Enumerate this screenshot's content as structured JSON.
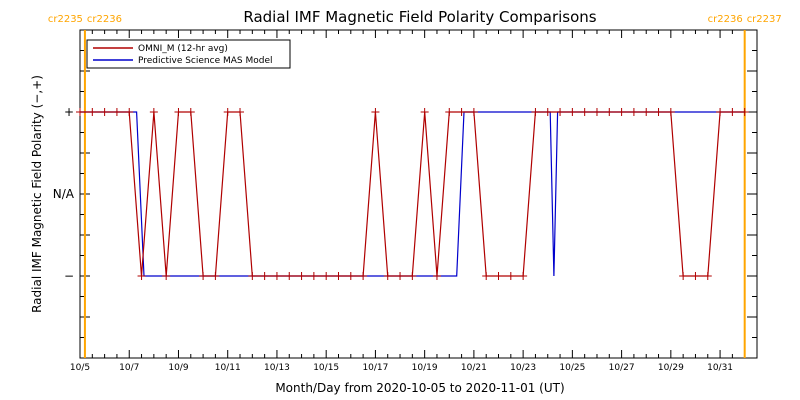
{
  "chart_data": {
    "type": "line",
    "title": "Radial IMF Magnetic Field Polarity Comparisons",
    "xlabel": "Month/Day from 2020-10-05 to 2020-11-01 (UT)",
    "ylabel": "Radial IMF Magnetic Field Polarity (−,+)",
    "x_tick_labels": [
      "10/5",
      "10/7",
      "10/9",
      "10/11",
      "10/13",
      "10/15",
      "10/17",
      "10/19",
      "10/21",
      "10/23",
      "10/25",
      "10/27",
      "10/29",
      "10/31"
    ],
    "x_tick_values": [
      0,
      2,
      4,
      6,
      8,
      10,
      12,
      14,
      16,
      18,
      20,
      22,
      24,
      26
    ],
    "y_ticks": [
      {
        "value": 1,
        "label": "+"
      },
      {
        "value": 0,
        "label": "N/A"
      },
      {
        "value": -1,
        "label": "−"
      }
    ],
    "xlim": [
      0,
      27.5
    ],
    "ylim": [
      -2.0,
      2.0
    ],
    "carrington_markers": [
      {
        "x": 0.2,
        "left_label": "cr2235",
        "right_label": "cr2236",
        "color": "#FFA500"
      },
      {
        "x": 27.0,
        "left_label": "cr2236",
        "right_label": "cr2237",
        "color": "#FFA500"
      }
    ],
    "legend": {
      "placement": "top-left"
    },
    "series": [
      {
        "name": "OMNI_M (12-hr avg)",
        "color": "#B00000",
        "markers": "+",
        "x": [
          0.0,
          0.5,
          1.0,
          1.5,
          2.0,
          2.5,
          3.0,
          3.5,
          4.0,
          4.5,
          5.0,
          5.5,
          6.0,
          6.5,
          7.0,
          7.5,
          8.0,
          8.5,
          9.0,
          9.5,
          10.0,
          10.5,
          11.0,
          11.5,
          12.0,
          12.5,
          13.0,
          13.5,
          14.0,
          14.5,
          15.0,
          15.5,
          16.0,
          16.5,
          17.0,
          17.5,
          18.0,
          18.5,
          19.0,
          19.5,
          20.0,
          20.5,
          21.0,
          21.5,
          22.0,
          22.5,
          23.0,
          23.5,
          24.0,
          24.5,
          25.0,
          25.5,
          26.0,
          26.5,
          27.0
        ],
        "y": [
          1,
          1,
          1,
          1,
          1,
          -1,
          1,
          -1,
          1,
          1,
          -1,
          -1,
          1,
          1,
          -1,
          -1,
          -1,
          -1,
          -1,
          -1,
          -1,
          -1,
          -1,
          -1,
          1,
          -1,
          -1,
          -1,
          1,
          -1,
          1,
          1,
          1,
          -1,
          -1,
          -1,
          -1,
          1,
          1,
          1,
          1,
          1,
          1,
          1,
          1,
          1,
          1,
          1,
          1,
          -1,
          -1,
          -1,
          1,
          1,
          1
        ]
      },
      {
        "name": "Predictive Science MAS Model",
        "color": "#0000CC",
        "x": [
          0.0,
          2.3,
          2.6,
          15.3,
          15.6,
          19.1,
          19.25,
          19.4,
          27.0
        ],
        "y": [
          1,
          1,
          -1,
          -1,
          1,
          1,
          -1,
          1,
          1
        ]
      }
    ]
  }
}
